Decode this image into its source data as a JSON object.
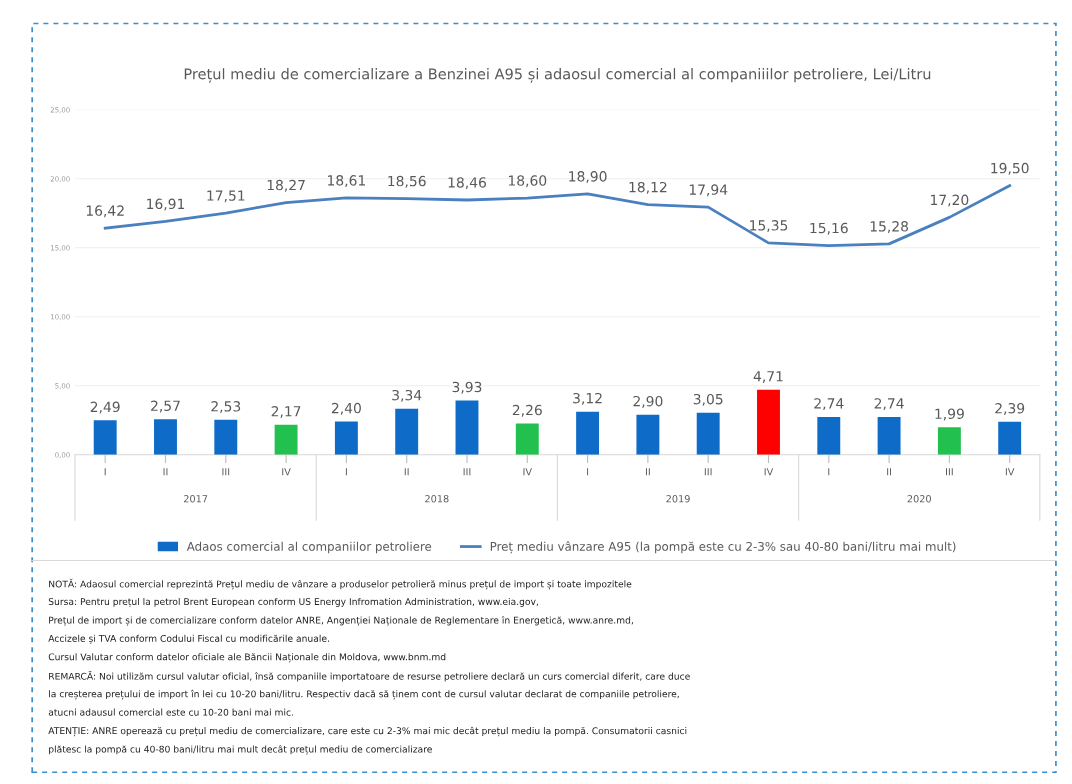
{
  "chart_data": {
    "type": "bar",
    "title": "Prețul mediu de comercializare a Benzinei A95 și adaosul comercial al companiiilor petroliere, Lei/Litru",
    "categories": [
      "I",
      "II",
      "III",
      "IV",
      "I",
      "II",
      "III",
      "IV",
      "I",
      "II",
      "III",
      "IV",
      "I",
      "II",
      "III",
      "IV"
    ],
    "series": [
      {
        "name": "Adaos comercial al companiilor petroliere",
        "color": "#0e6bc7",
        "value_labels": [
          "2,49",
          "2,57",
          "2,53",
          "2,17",
          "2,40",
          "3,34",
          "3,93",
          "2,26",
          "3,12",
          "2,90",
          "3,05",
          "4,71",
          "2,74",
          "2,74",
          "1,99",
          "2,39"
        ],
        "colors": [
          "#0e6bc7",
          "#0e6bc7",
          "#0e6bc7",
          "#22c04f",
          "#0e6bc7",
          "#0e6bc7",
          "#0e6bc7",
          "#22c04f",
          "#0e6bc7",
          "#0e6bc7",
          "#0e6bc7",
          "#ff0000",
          "#0e6bc7",
          "#0e6bc7",
          "#22c04f",
          "#0e6bc7"
        ],
        "values": [
          2.49,
          2.57,
          2.53,
          2.17,
          2.4,
          3.34,
          3.93,
          2.26,
          3.12,
          2.9,
          3.05,
          4.71,
          2.74,
          2.74,
          1.99,
          2.39
        ]
      },
      {
        "name": "Preț mediu vânzare A95 (la pompă este cu 2-3% sau 40-80 bani/litru mai mult)",
        "type": "line",
        "color": "#4a7fc0",
        "value_labels": [
          "16,42",
          "16,91",
          "17,51",
          "18,27",
          "18,61",
          "18,56",
          "18,46",
          "18,60",
          "18,90",
          "18,12",
          "17,94",
          "15,35",
          "15,16",
          "15,28",
          "17,20",
          "19,50"
        ],
        "values": [
          16.42,
          16.91,
          17.51,
          18.27,
          18.61,
          18.56,
          18.46,
          18.6,
          18.9,
          18.12,
          17.94,
          15.35,
          15.16,
          15.28,
          17.2,
          19.5
        ]
      }
    ],
    "ylim": [
      0,
      25
    ],
    "yticks": [
      {
        "value": 0,
        "label": "0,00"
      },
      {
        "value": 5,
        "label": "5,00"
      },
      {
        "value": 10,
        "label": "10,00"
      },
      {
        "value": 15,
        "label": "15,00"
      },
      {
        "value": 20,
        "label": "20,00"
      },
      {
        "value": 25,
        "label": "25,00"
      }
    ],
    "grid": "y",
    "legend": "bottom",
    "annotations": [
      "2017",
      "2018",
      "2019",
      "2020",
      "NOTĂ: Adaosul comercial reprezintă Prețul mediu de vânzare a produselor petrolieră minus prețul de import și toate impozitele",
      "Sursa: Pentru prețul la petrol Brent European conform US Energy Infromation Administration, www.eia.gov,",
      "Prețul de import și de comercializare conform datelor ANRE, Angenției Naționale de Reglementare în Energetică, www.anre.md,",
      "Accizele și TVA conform Codului Fiscal cu modificările anuale.",
      "Cursul Valutar conform datelor oficiale ale Băncii Naționale din Moldova, www.bnm.md",
      "REMARCĂ: Noi utilizăm cursul valutar oficial, însă companiile importatoare de resurse petroliere declară un curs comercial diferit, care duce",
      "la creșterea prețului de import în lei cu 10-20 bani/litru. Respectiv dacă să ținem cont de cursul valutar declarat de companiile petroliere,",
      "atucni adausul comercial este cu 10-20 bani mai mic.",
      "ATENȚIE: ANRE operează cu prețul mediu de comercializare, care este cu 2-3% mai mic decât prețul mediu la pompă. Consumatorii casnici",
      "plătesc la pompă cu 40-80 bani/litru mai mult decât prețul mediu de comercializare"
    ]
  }
}
